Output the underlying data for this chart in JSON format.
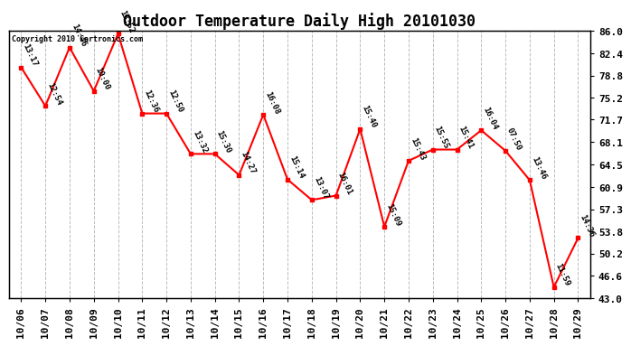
{
  "title": "Outdoor Temperature Daily High 20101030",
  "copyright": "Copyright 2010 Cartronics.com",
  "dates": [
    "10/06",
    "10/07",
    "10/08",
    "10/09",
    "10/10",
    "10/11",
    "10/12",
    "10/13",
    "10/14",
    "10/15",
    "10/16",
    "10/17",
    "10/18",
    "10/19",
    "10/20",
    "10/21",
    "10/22",
    "10/23",
    "10/24",
    "10/25",
    "10/26",
    "10/27",
    "10/28",
    "10/29"
  ],
  "values": [
    80.1,
    73.9,
    83.3,
    76.3,
    85.5,
    72.7,
    72.7,
    66.2,
    66.2,
    62.8,
    72.5,
    62.1,
    58.8,
    59.5,
    70.2,
    54.5,
    65.1,
    66.9,
    66.9,
    70.0,
    66.7,
    62.0,
    44.8,
    52.7
  ],
  "labels": [
    "13:17",
    "12:54",
    "14:46",
    "10:00",
    "13:52",
    "12:36",
    "12:50",
    "13:32",
    "15:30",
    "14:27",
    "16:08",
    "15:14",
    "13:07",
    "16:01",
    "15:40",
    "15:09",
    "15:43",
    "15:55",
    "15:41",
    "16:04",
    "07:50",
    "13:46",
    "11:59",
    "14:36"
  ],
  "ylim_min": 43.0,
  "ylim_max": 86.0,
  "yticks": [
    43.0,
    46.6,
    50.2,
    53.8,
    57.3,
    60.9,
    64.5,
    68.1,
    71.7,
    75.2,
    78.8,
    82.4,
    86.0
  ],
  "line_color": "red",
  "marker_color": "red",
  "bg_color": "white",
  "grid_color": "#bbbbbb",
  "title_fontsize": 12,
  "label_fontsize": 6.5,
  "tick_fontsize": 8,
  "copyright_fontsize": 6.0
}
